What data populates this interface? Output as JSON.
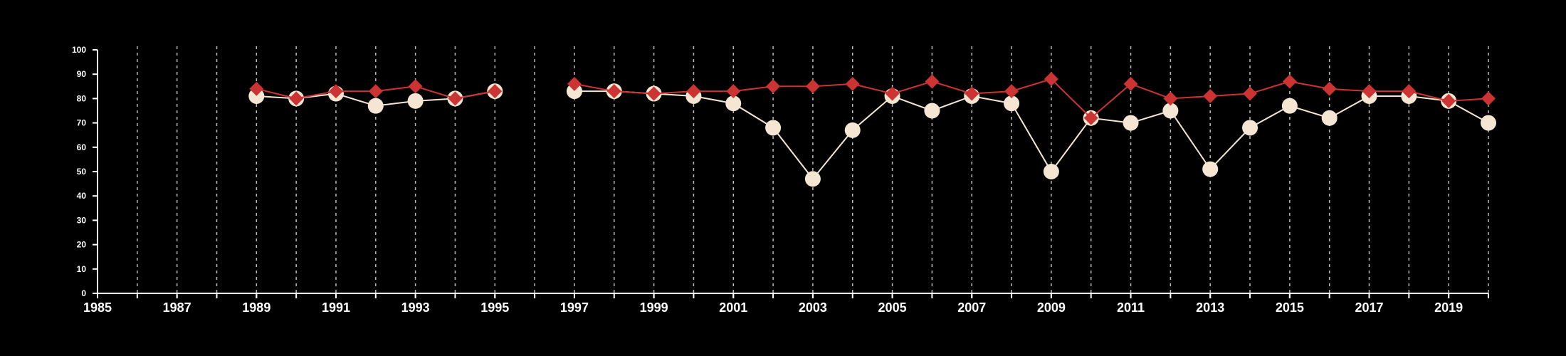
{
  "colors": {
    "background": "#000000",
    "axis": "#ffffff",
    "grid": "#bbbbbb",
    "series_a": "#f5e6d3",
    "series_b": "#cc3333"
  },
  "chart_data": {
    "type": "line",
    "grid": "vertical dashed lines at each year",
    "legend": "none",
    "xlim": [
      1985,
      2020
    ],
    "ylim": [
      0,
      100
    ],
    "x_ticks": [
      1985,
      1987,
      1989,
      1991,
      1993,
      1995,
      1997,
      1999,
      2001,
      2003,
      2005,
      2007,
      2009,
      2011,
      2013,
      2015,
      2017,
      2019
    ],
    "y_ticks": [
      0,
      10,
      20,
      30,
      40,
      50,
      60,
      70,
      80,
      90,
      100
    ],
    "x": [
      1985,
      1986,
      1987,
      1988,
      1989,
      1990,
      1991,
      1992,
      1993,
      1994,
      1995,
      1996,
      1997,
      1998,
      1999,
      2000,
      2001,
      2002,
      2003,
      2004,
      2005,
      2006,
      2007,
      2008,
      2009,
      2010,
      2011,
      2012,
      2013,
      2014,
      2015,
      2016,
      2017,
      2018,
      2019,
      2020
    ],
    "series": [
      {
        "marker": "circle",
        "color": "#f5e6d3",
        "values": [
          null,
          null,
          null,
          null,
          81,
          80,
          82,
          77,
          79,
          80,
          83,
          null,
          83,
          83,
          82,
          81,
          78,
          68,
          47,
          67,
          81,
          75,
          81,
          78,
          50,
          72,
          70,
          75,
          51,
          68,
          77,
          72,
          81,
          81,
          79,
          70
        ]
      },
      {
        "marker": "diamond",
        "color": "#cc3333",
        "values": [
          null,
          null,
          null,
          null,
          84,
          80,
          83,
          83,
          85,
          80,
          83,
          null,
          86,
          83,
          82,
          83,
          83,
          85,
          85,
          86,
          82,
          87,
          82,
          83,
          88,
          72,
          86,
          80,
          81,
          82,
          87,
          84,
          83,
          83,
          79,
          80
        ]
      }
    ]
  }
}
